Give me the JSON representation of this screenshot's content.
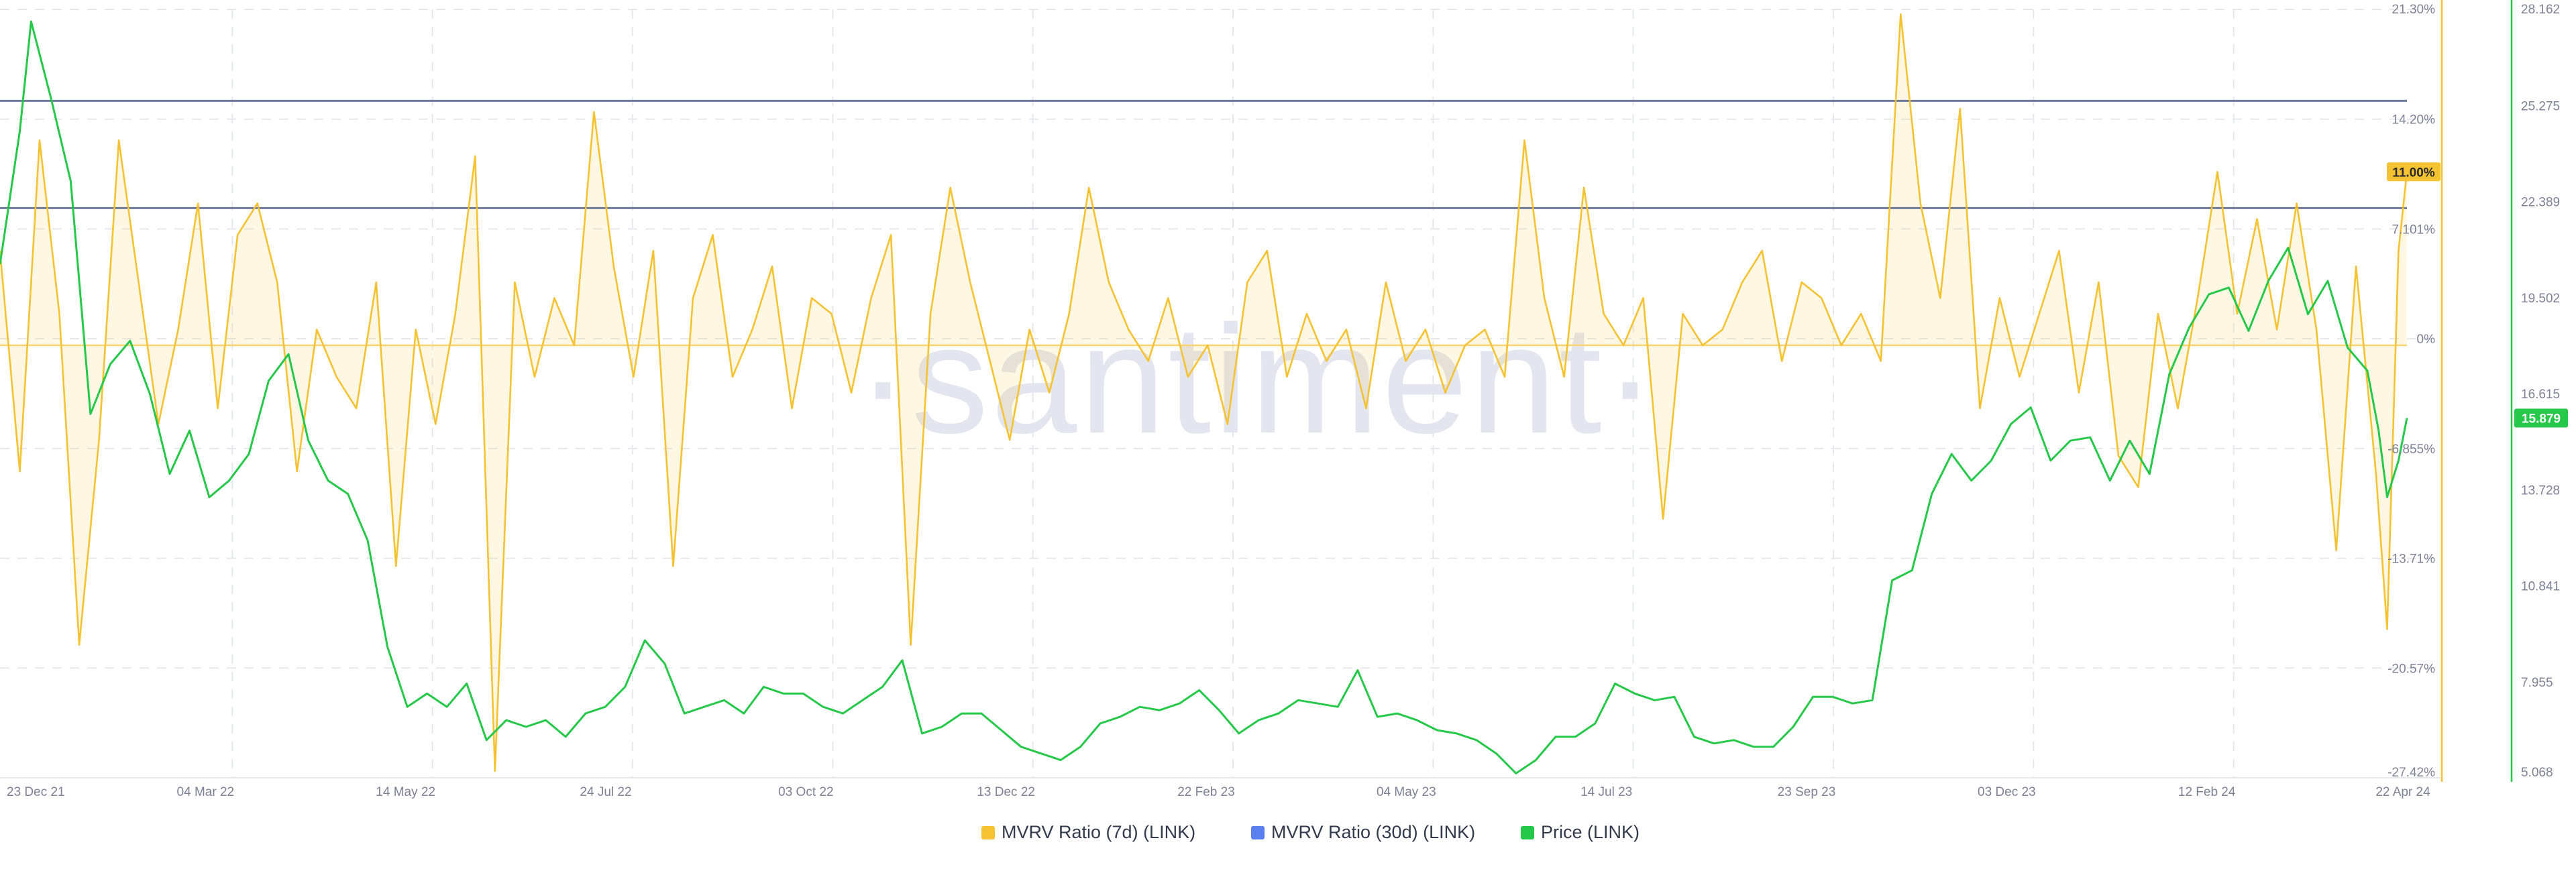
{
  "watermark": "·santiment·",
  "chart_data": {
    "type": "line",
    "x_range": [
      "2021-12-23",
      "2024-04-22"
    ],
    "x_ticks": [
      "23 Dec 21",
      "04 Mar 22",
      "14 May 22",
      "24 Jul 22",
      "03 Oct 22",
      "13 Dec 22",
      "22 Feb 23",
      "04 May 23",
      "14 Jul 23",
      "23 Sep 23",
      "03 Dec 23",
      "12 Feb 24",
      "22 Apr 24"
    ],
    "y_left": {
      "unit": "%",
      "ticks": [
        "21.30%",
        "14.20%",
        "7.101%",
        "0%",
        "-6.855%",
        "-13.71%",
        "-20.57%",
        "-27.42%"
      ],
      "range": [
        -27.42,
        21.3
      ]
    },
    "y_right": {
      "ticks": [
        "28.162",
        "25.275",
        "22.389",
        "19.502",
        "16.615",
        "13.728",
        "10.841",
        "7.955",
        "5.068"
      ],
      "range": [
        5.068,
        28.162
      ]
    },
    "reference_lines_pct": [
      15.5,
      8.7
    ],
    "legend_position": "bottom-center",
    "grid": true,
    "current_values": {
      "mvrv_7d": "11.00%",
      "price": "15.879"
    },
    "series": [
      {
        "name": "MVRV Ratio (7d) (LINK)",
        "color": "#f5c232",
        "axis": "left",
        "style": "line-with-zero-fill",
        "points": [
          [
            "2021-12-23",
            6
          ],
          [
            "2021-12-30",
            -8
          ],
          [
            "2022-01-06",
            13
          ],
          [
            "2022-01-13",
            2
          ],
          [
            "2022-01-20",
            -19
          ],
          [
            "2022-01-27",
            -6
          ],
          [
            "2022-02-03",
            13
          ],
          [
            "2022-02-10",
            4
          ],
          [
            "2022-02-17",
            -5
          ],
          [
            "2022-02-24",
            1
          ],
          [
            "2022-03-03",
            9
          ],
          [
            "2022-03-10",
            -4
          ],
          [
            "2022-03-17",
            7
          ],
          [
            "2022-03-24",
            9
          ],
          [
            "2022-03-31",
            4
          ],
          [
            "2022-04-07",
            -8
          ],
          [
            "2022-04-14",
            1
          ],
          [
            "2022-04-21",
            -2
          ],
          [
            "2022-04-28",
            -4
          ],
          [
            "2022-05-05",
            4
          ],
          [
            "2022-05-12",
            -14
          ],
          [
            "2022-05-19",
            1
          ],
          [
            "2022-05-26",
            -5
          ],
          [
            "2022-06-02",
            2
          ],
          [
            "2022-06-09",
            12
          ],
          [
            "2022-06-16",
            -27
          ],
          [
            "2022-06-23",
            4
          ],
          [
            "2022-06-30",
            -2
          ],
          [
            "2022-07-07",
            3
          ],
          [
            "2022-07-14",
            0
          ],
          [
            "2022-07-21",
            14.8
          ],
          [
            "2022-07-28",
            5
          ],
          [
            "2022-08-04",
            -2
          ],
          [
            "2022-08-11",
            6
          ],
          [
            "2022-08-18",
            -14
          ],
          [
            "2022-08-25",
            3
          ],
          [
            "2022-09-01",
            7
          ],
          [
            "2022-09-08",
            -2
          ],
          [
            "2022-09-15",
            1
          ],
          [
            "2022-09-22",
            5
          ],
          [
            "2022-09-29",
            -4
          ],
          [
            "2022-10-06",
            3
          ],
          [
            "2022-10-13",
            2
          ],
          [
            "2022-10-20",
            -3
          ],
          [
            "2022-10-27",
            3
          ],
          [
            "2022-11-03",
            7
          ],
          [
            "2022-11-10",
            -19
          ],
          [
            "2022-11-17",
            2
          ],
          [
            "2022-11-24",
            10
          ],
          [
            "2022-12-01",
            4
          ],
          [
            "2022-12-08",
            -1
          ],
          [
            "2022-12-15",
            -6
          ],
          [
            "2022-12-22",
            1
          ],
          [
            "2022-12-29",
            -3
          ],
          [
            "2023-01-05",
            2
          ],
          [
            "2023-01-12",
            10
          ],
          [
            "2023-01-19",
            4
          ],
          [
            "2023-01-26",
            1
          ],
          [
            "2023-02-02",
            -1
          ],
          [
            "2023-02-09",
            3
          ],
          [
            "2023-02-16",
            -2
          ],
          [
            "2023-02-23",
            0
          ],
          [
            "2023-03-02",
            -5
          ],
          [
            "2023-03-09",
            4
          ],
          [
            "2023-03-16",
            6
          ],
          [
            "2023-03-23",
            -2
          ],
          [
            "2023-03-30",
            2
          ],
          [
            "2023-04-06",
            -1
          ],
          [
            "2023-04-13",
            1
          ],
          [
            "2023-04-20",
            -4
          ],
          [
            "2023-04-27",
            4
          ],
          [
            "2023-05-04",
            -1
          ],
          [
            "2023-05-11",
            1
          ],
          [
            "2023-05-18",
            -3
          ],
          [
            "2023-05-25",
            0
          ],
          [
            "2023-06-01",
            1
          ],
          [
            "2023-06-08",
            -2
          ],
          [
            "2023-06-15",
            13
          ],
          [
            "2023-06-22",
            3
          ],
          [
            "2023-06-29",
            -2
          ],
          [
            "2023-07-06",
            10
          ],
          [
            "2023-07-13",
            2
          ],
          [
            "2023-07-20",
            0
          ],
          [
            "2023-07-27",
            3
          ],
          [
            "2023-08-03",
            -11
          ],
          [
            "2023-08-10",
            2
          ],
          [
            "2023-08-17",
            0
          ],
          [
            "2023-08-24",
            1
          ],
          [
            "2023-08-31",
            4
          ],
          [
            "2023-09-07",
            6
          ],
          [
            "2023-09-14",
            -1
          ],
          [
            "2023-09-21",
            4
          ],
          [
            "2023-09-28",
            3
          ],
          [
            "2023-10-05",
            0
          ],
          [
            "2023-10-12",
            2
          ],
          [
            "2023-10-19",
            -1
          ],
          [
            "2023-10-26",
            21
          ],
          [
            "2023-11-02",
            9
          ],
          [
            "2023-11-09",
            3
          ],
          [
            "2023-11-16",
            15
          ],
          [
            "2023-11-23",
            -4
          ],
          [
            "2023-11-30",
            3
          ],
          [
            "2023-12-07",
            -2
          ],
          [
            "2023-12-14",
            2
          ],
          [
            "2023-12-21",
            6
          ],
          [
            "2023-12-28",
            -3
          ],
          [
            "2024-01-04",
            4
          ],
          [
            "2024-01-11",
            -7
          ],
          [
            "2024-01-18",
            -9
          ],
          [
            "2024-01-25",
            2
          ],
          [
            "2024-02-01",
            -4
          ],
          [
            "2024-02-08",
            3
          ],
          [
            "2024-02-15",
            11
          ],
          [
            "2024-02-22",
            2
          ],
          [
            "2024-02-29",
            8
          ],
          [
            "2024-03-07",
            1
          ],
          [
            "2024-03-14",
            9
          ],
          [
            "2024-03-21",
            1
          ],
          [
            "2024-03-28",
            -13
          ],
          [
            "2024-04-04",
            5
          ],
          [
            "2024-04-11",
            -8
          ],
          [
            "2024-04-15",
            -18
          ],
          [
            "2024-04-19",
            6
          ],
          [
            "2024-04-22",
            11
          ]
        ]
      },
      {
        "name": "MVRV Ratio (30d) (LINK)",
        "color": "#5c7ff0",
        "axis": "left",
        "style": "line",
        "points": []
      },
      {
        "name": "Price (LINK)",
        "color": "#26c84a",
        "axis": "right",
        "style": "line",
        "points": [
          [
            "2021-12-23",
            20.5
          ],
          [
            "2021-12-30",
            24.5
          ],
          [
            "2022-01-03",
            27.8
          ],
          [
            "2022-01-10",
            25.5
          ],
          [
            "2022-01-17",
            23.0
          ],
          [
            "2022-01-24",
            16.0
          ],
          [
            "2022-01-31",
            17.5
          ],
          [
            "2022-02-07",
            18.2
          ],
          [
            "2022-02-14",
            16.6
          ],
          [
            "2022-02-21",
            14.2
          ],
          [
            "2022-02-28",
            15.5
          ],
          [
            "2022-03-07",
            13.5
          ],
          [
            "2022-03-14",
            14.0
          ],
          [
            "2022-03-21",
            14.8
          ],
          [
            "2022-03-28",
            17.0
          ],
          [
            "2022-04-04",
            17.8
          ],
          [
            "2022-04-11",
            15.2
          ],
          [
            "2022-04-18",
            14.0
          ],
          [
            "2022-04-25",
            13.6
          ],
          [
            "2022-05-02",
            12.2
          ],
          [
            "2022-05-09",
            9.0
          ],
          [
            "2022-05-16",
            7.2
          ],
          [
            "2022-05-23",
            7.6
          ],
          [
            "2022-05-30",
            7.2
          ],
          [
            "2022-06-06",
            7.9
          ],
          [
            "2022-06-13",
            6.2
          ],
          [
            "2022-06-20",
            6.8
          ],
          [
            "2022-06-27",
            6.6
          ],
          [
            "2022-07-04",
            6.8
          ],
          [
            "2022-07-11",
            6.3
          ],
          [
            "2022-07-18",
            7.0
          ],
          [
            "2022-07-25",
            7.2
          ],
          [
            "2022-08-01",
            7.8
          ],
          [
            "2022-08-08",
            9.2
          ],
          [
            "2022-08-15",
            8.5
          ],
          [
            "2022-08-22",
            7.0
          ],
          [
            "2022-08-29",
            7.2
          ],
          [
            "2022-09-05",
            7.4
          ],
          [
            "2022-09-12",
            7.0
          ],
          [
            "2022-09-19",
            7.8
          ],
          [
            "2022-09-26",
            7.6
          ],
          [
            "2022-10-03",
            7.6
          ],
          [
            "2022-10-10",
            7.2
          ],
          [
            "2022-10-17",
            7.0
          ],
          [
            "2022-10-24",
            7.4
          ],
          [
            "2022-10-31",
            7.8
          ],
          [
            "2022-11-07",
            8.6
          ],
          [
            "2022-11-14",
            6.4
          ],
          [
            "2022-11-21",
            6.6
          ],
          [
            "2022-11-28",
            7.0
          ],
          [
            "2022-12-05",
            7.0
          ],
          [
            "2022-12-12",
            6.5
          ],
          [
            "2022-12-19",
            6.0
          ],
          [
            "2022-12-26",
            5.8
          ],
          [
            "2023-01-02",
            5.6
          ],
          [
            "2023-01-09",
            6.0
          ],
          [
            "2023-01-16",
            6.7
          ],
          [
            "2023-01-23",
            6.9
          ],
          [
            "2023-01-30",
            7.2
          ],
          [
            "2023-02-06",
            7.1
          ],
          [
            "2023-02-13",
            7.3
          ],
          [
            "2023-02-20",
            7.7
          ],
          [
            "2023-02-27",
            7.1
          ],
          [
            "2023-03-06",
            6.4
          ],
          [
            "2023-03-13",
            6.8
          ],
          [
            "2023-03-20",
            7.0
          ],
          [
            "2023-03-27",
            7.4
          ],
          [
            "2023-04-03",
            7.3
          ],
          [
            "2023-04-10",
            7.2
          ],
          [
            "2023-04-17",
            8.3
          ],
          [
            "2023-04-24",
            6.9
          ],
          [
            "2023-05-01",
            7.0
          ],
          [
            "2023-05-08",
            6.8
          ],
          [
            "2023-05-15",
            6.5
          ],
          [
            "2023-05-22",
            6.4
          ],
          [
            "2023-05-29",
            6.2
          ],
          [
            "2023-06-05",
            5.8
          ],
          [
            "2023-06-12",
            5.2
          ],
          [
            "2023-06-19",
            5.6
          ],
          [
            "2023-06-26",
            6.3
          ],
          [
            "2023-07-03",
            6.3
          ],
          [
            "2023-07-10",
            6.7
          ],
          [
            "2023-07-17",
            7.9
          ],
          [
            "2023-07-24",
            7.6
          ],
          [
            "2023-07-31",
            7.4
          ],
          [
            "2023-08-07",
            7.5
          ],
          [
            "2023-08-14",
            6.3
          ],
          [
            "2023-08-21",
            6.1
          ],
          [
            "2023-08-28",
            6.2
          ],
          [
            "2023-09-04",
            6.0
          ],
          [
            "2023-09-11",
            6.0
          ],
          [
            "2023-09-18",
            6.6
          ],
          [
            "2023-09-25",
            7.5
          ],
          [
            "2023-10-02",
            7.5
          ],
          [
            "2023-10-09",
            7.3
          ],
          [
            "2023-10-16",
            7.4
          ],
          [
            "2023-10-23",
            11.0
          ],
          [
            "2023-10-30",
            11.3
          ],
          [
            "2023-11-06",
            13.6
          ],
          [
            "2023-11-13",
            14.8
          ],
          [
            "2023-11-20",
            14.0
          ],
          [
            "2023-11-27",
            14.6
          ],
          [
            "2023-12-04",
            15.7
          ],
          [
            "2023-12-11",
            16.2
          ],
          [
            "2023-12-18",
            14.6
          ],
          [
            "2023-12-25",
            15.2
          ],
          [
            "2024-01-01",
            15.3
          ],
          [
            "2024-01-08",
            14.0
          ],
          [
            "2024-01-15",
            15.2
          ],
          [
            "2024-01-22",
            14.2
          ],
          [
            "2024-01-29",
            17.2
          ],
          [
            "2024-02-05",
            18.6
          ],
          [
            "2024-02-12",
            19.6
          ],
          [
            "2024-02-19",
            19.8
          ],
          [
            "2024-02-26",
            18.5
          ],
          [
            "2024-03-04",
            20.0
          ],
          [
            "2024-03-11",
            21.0
          ],
          [
            "2024-03-18",
            19.0
          ],
          [
            "2024-03-25",
            20.0
          ],
          [
            "2024-04-01",
            18.0
          ],
          [
            "2024-04-08",
            17.3
          ],
          [
            "2024-04-12",
            15.5
          ],
          [
            "2024-04-15",
            13.5
          ],
          [
            "2024-04-19",
            14.6
          ],
          [
            "2024-04-22",
            15.879
          ]
        ]
      }
    ]
  }
}
